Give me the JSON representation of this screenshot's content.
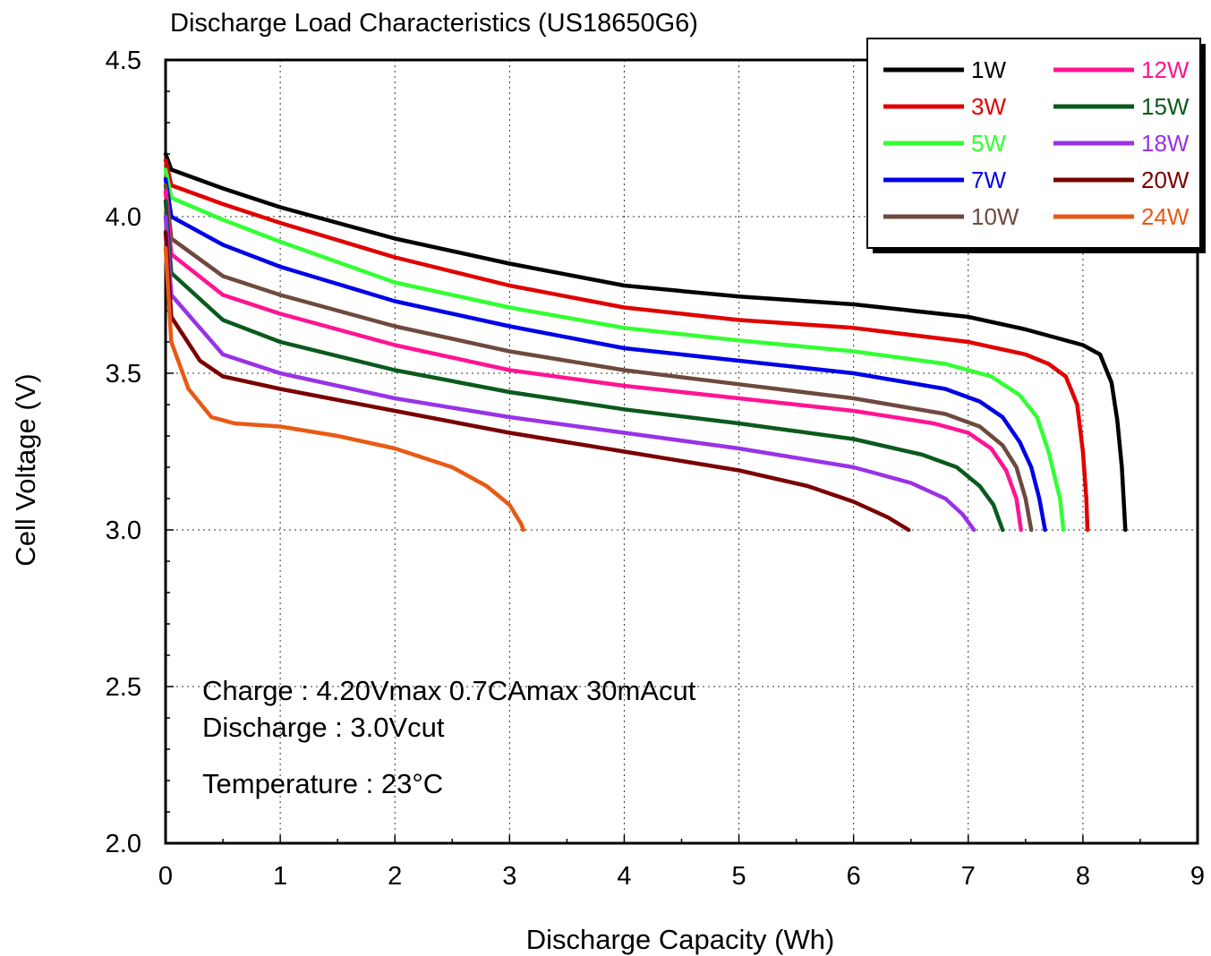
{
  "chart_data": {
    "type": "line",
    "title": "Discharge Load Characteristics (US18650G6)",
    "xlabel": "Discharge Capacity (Wh)",
    "ylabel": "Cell Voltage (V)",
    "xlim": [
      0,
      9
    ],
    "ylim": [
      2.0,
      4.5
    ],
    "x_ticks": [
      "0",
      "1",
      "2",
      "3",
      "4",
      "5",
      "6",
      "7",
      "8",
      "9"
    ],
    "y_ticks": [
      "2.0",
      "2.5",
      "3.0",
      "3.5",
      "4.0",
      "4.5"
    ],
    "grid": "dotted at 1 Wh and 0.5 V",
    "legend_position": "top-right",
    "annotations": {
      "charge": "Charge : 4.20Vmax 0.7CAmax 30mAcut",
      "discharge": "Discharge : 3.0Vcut",
      "temperature": "Temperature : 23°C"
    },
    "series": [
      {
        "name": "1W",
        "color": "#000000",
        "points": [
          [
            0,
            4.2
          ],
          [
            0.05,
            4.15
          ],
          [
            0.5,
            4.09
          ],
          [
            1,
            4.03
          ],
          [
            2,
            3.93
          ],
          [
            3,
            3.85
          ],
          [
            4,
            3.78
          ],
          [
            5,
            3.745
          ],
          [
            6,
            3.72
          ],
          [
            7,
            3.68
          ],
          [
            7.5,
            3.64
          ],
          [
            7.8,
            3.61
          ],
          [
            8,
            3.59
          ],
          [
            8.15,
            3.56
          ],
          [
            8.25,
            3.47
          ],
          [
            8.3,
            3.35
          ],
          [
            8.34,
            3.2
          ],
          [
            8.37,
            3.0
          ]
        ]
      },
      {
        "name": "3W",
        "color": "#e00000",
        "points": [
          [
            0,
            4.18
          ],
          [
            0.05,
            4.1
          ],
          [
            0.5,
            4.04
          ],
          [
            1,
            3.98
          ],
          [
            2,
            3.87
          ],
          [
            3,
            3.78
          ],
          [
            4,
            3.71
          ],
          [
            5,
            3.67
          ],
          [
            6,
            3.645
          ],
          [
            7,
            3.6
          ],
          [
            7.5,
            3.56
          ],
          [
            7.7,
            3.53
          ],
          [
            7.85,
            3.49
          ],
          [
            7.95,
            3.4
          ],
          [
            8.0,
            3.25
          ],
          [
            8.03,
            3.1
          ],
          [
            8.04,
            3.0
          ]
        ]
      },
      {
        "name": "5W",
        "color": "#33ff33",
        "points": [
          [
            0,
            4.15
          ],
          [
            0.05,
            4.06
          ],
          [
            0.5,
            3.99
          ],
          [
            1,
            3.92
          ],
          [
            2,
            3.79
          ],
          [
            3,
            3.71
          ],
          [
            4,
            3.645
          ],
          [
            5,
            3.605
          ],
          [
            6,
            3.57
          ],
          [
            6.8,
            3.53
          ],
          [
            7.2,
            3.49
          ],
          [
            7.45,
            3.43
          ],
          [
            7.6,
            3.36
          ],
          [
            7.7,
            3.25
          ],
          [
            7.8,
            3.1
          ],
          [
            7.83,
            3.0
          ]
        ]
      },
      {
        "name": "7W",
        "color": "#0000e6",
        "points": [
          [
            0,
            4.12
          ],
          [
            0.05,
            4.0
          ],
          [
            0.5,
            3.91
          ],
          [
            1,
            3.84
          ],
          [
            2,
            3.73
          ],
          [
            3,
            3.65
          ],
          [
            4,
            3.58
          ],
          [
            5,
            3.54
          ],
          [
            6,
            3.5
          ],
          [
            6.8,
            3.45
          ],
          [
            7.1,
            3.41
          ],
          [
            7.3,
            3.36
          ],
          [
            7.45,
            3.28
          ],
          [
            7.55,
            3.2
          ],
          [
            7.62,
            3.1
          ],
          [
            7.67,
            3.0
          ]
        ]
      },
      {
        "name": "10W",
        "color": "#6e4a3e",
        "points": [
          [
            0,
            4.1
          ],
          [
            0.05,
            3.93
          ],
          [
            0.5,
            3.81
          ],
          [
            1,
            3.75
          ],
          [
            2,
            3.65
          ],
          [
            3,
            3.57
          ],
          [
            4,
            3.51
          ],
          [
            5,
            3.465
          ],
          [
            6,
            3.42
          ],
          [
            6.8,
            3.37
          ],
          [
            7.1,
            3.33
          ],
          [
            7.3,
            3.27
          ],
          [
            7.42,
            3.2
          ],
          [
            7.5,
            3.1
          ],
          [
            7.55,
            3.0
          ]
        ]
      },
      {
        "name": "12W",
        "color": "#ff1493",
        "points": [
          [
            0,
            4.08
          ],
          [
            0.05,
            3.88
          ],
          [
            0.5,
            3.75
          ],
          [
            1,
            3.69
          ],
          [
            2,
            3.59
          ],
          [
            3,
            3.51
          ],
          [
            4,
            3.46
          ],
          [
            5,
            3.42
          ],
          [
            6,
            3.38
          ],
          [
            6.7,
            3.34
          ],
          [
            7.0,
            3.31
          ],
          [
            7.2,
            3.26
          ],
          [
            7.33,
            3.19
          ],
          [
            7.42,
            3.1
          ],
          [
            7.46,
            3.0
          ]
        ]
      },
      {
        "name": "15W",
        "color": "#0a5a1e",
        "points": [
          [
            0,
            4.05
          ],
          [
            0.05,
            3.82
          ],
          [
            0.5,
            3.67
          ],
          [
            1,
            3.6
          ],
          [
            2,
            3.51
          ],
          [
            3,
            3.44
          ],
          [
            4,
            3.385
          ],
          [
            5,
            3.34
          ],
          [
            6,
            3.29
          ],
          [
            6.6,
            3.24
          ],
          [
            6.9,
            3.2
          ],
          [
            7.1,
            3.14
          ],
          [
            7.22,
            3.08
          ],
          [
            7.3,
            3.0
          ]
        ]
      },
      {
        "name": "18W",
        "color": "#9933e6",
        "points": [
          [
            0,
            4.0
          ],
          [
            0.05,
            3.75
          ],
          [
            0.5,
            3.56
          ],
          [
            1,
            3.5
          ],
          [
            2,
            3.42
          ],
          [
            3,
            3.36
          ],
          [
            4,
            3.31
          ],
          [
            5,
            3.26
          ],
          [
            6,
            3.2
          ],
          [
            6.5,
            3.15
          ],
          [
            6.8,
            3.1
          ],
          [
            6.95,
            3.05
          ],
          [
            7.05,
            3.0
          ]
        ]
      },
      {
        "name": "20W",
        "color": "#7a0000",
        "points": [
          [
            0,
            3.95
          ],
          [
            0.05,
            3.68
          ],
          [
            0.3,
            3.54
          ],
          [
            0.5,
            3.49
          ],
          [
            1,
            3.45
          ],
          [
            2,
            3.38
          ],
          [
            3,
            3.31
          ],
          [
            4,
            3.25
          ],
          [
            5,
            3.19
          ],
          [
            5.6,
            3.14
          ],
          [
            6.0,
            3.09
          ],
          [
            6.3,
            3.04
          ],
          [
            6.48,
            3.0
          ]
        ]
      },
      {
        "name": "24W",
        "color": "#e85a14",
        "points": [
          [
            0,
            3.9
          ],
          [
            0.05,
            3.6
          ],
          [
            0.2,
            3.45
          ],
          [
            0.4,
            3.36
          ],
          [
            0.6,
            3.34
          ],
          [
            1,
            3.33
          ],
          [
            1.5,
            3.3
          ],
          [
            2,
            3.26
          ],
          [
            2.5,
            3.2
          ],
          [
            2.8,
            3.14
          ],
          [
            3.0,
            3.08
          ],
          [
            3.1,
            3.02
          ],
          [
            3.12,
            3.0
          ]
        ]
      }
    ]
  }
}
